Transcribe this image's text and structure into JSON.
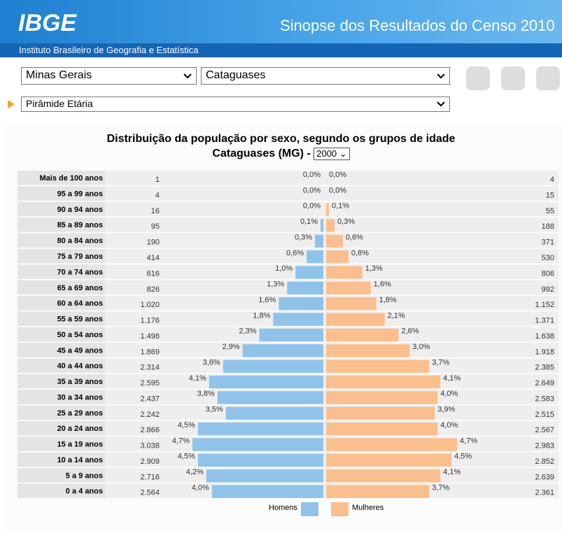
{
  "header": {
    "logo": "IBGE",
    "title": "Sinopse dos Resultados do Censo 2010",
    "subtitle": "Instituto Brasileiro de Geografia e Estatística"
  },
  "selects": {
    "state": "Minas Gerais",
    "city": "Cataguases",
    "view": "Pirâmide Etária"
  },
  "chart_data": {
    "type": "pyramid",
    "title": "Distribuição da população por sexo, segundo os grupos de idade",
    "subtitle": "Cataguases (MG) -",
    "year": "2000",
    "categories": [
      "Mais de 100 anos",
      "95 a 99 anos",
      "90 a 94 anos",
      "85 a 89 anos",
      "80 a 84 anos",
      "75 a 79 anos",
      "70 a 74 anos",
      "65 a 69 anos",
      "60 a 64 anos",
      "55 a 59 anos",
      "50 a 54 anos",
      "45 a 49 anos",
      "40 a 44 anos",
      "35 a 39 anos",
      "30 a 34 anos",
      "25 a 29 anos",
      "20 a 24 anos",
      "15 a 19 anos",
      "10 a 14 anos",
      "5 a 9 anos",
      "0 a 4 anos"
    ],
    "series": [
      {
        "name": "Homens",
        "color": "#8fc3ea",
        "values": [
          0.0,
          0.0,
          0.0,
          0.1,
          0.3,
          0.6,
          1.0,
          1.3,
          1.6,
          1.8,
          2.3,
          2.9,
          3.6,
          4.1,
          3.8,
          3.5,
          4.5,
          4.7,
          4.5,
          4.2,
          4.0
        ],
        "value_labels": [
          "0,0%",
          "0,0%",
          "0,0%",
          "0,1%",
          "0,3%",
          "0,6%",
          "1,0%",
          "1,3%",
          "1,6%",
          "1,8%",
          "2,3%",
          "2,9%",
          "3,6%",
          "4,1%",
          "3,8%",
          "3,5%",
          "4,5%",
          "4,7%",
          "4,5%",
          "4,2%",
          "4,0%"
        ],
        "counts": [
          "1",
          "4",
          "16",
          "95",
          "190",
          "414",
          "616",
          "826",
          "1.020",
          "1.176",
          "1.498",
          "1.869",
          "2.314",
          "2.595",
          "2.437",
          "2.242",
          "2.866",
          "3.038",
          "2.909",
          "2.716",
          "2.564"
        ]
      },
      {
        "name": "Mulheres",
        "color": "#fbbf8d",
        "values": [
          0.0,
          0.0,
          0.1,
          0.3,
          0.6,
          0.8,
          1.3,
          1.6,
          1.8,
          2.1,
          2.6,
          3.0,
          3.7,
          4.1,
          4.0,
          3.9,
          4.0,
          4.7,
          4.5,
          4.1,
          3.7
        ],
        "value_labels": [
          "0,0%",
          "0,0%",
          "0,1%",
          "0,3%",
          "0,6%",
          "0,8%",
          "1,3%",
          "1,6%",
          "1,8%",
          "2,1%",
          "2,6%",
          "3,0%",
          "3,7%",
          "4,1%",
          "4,0%",
          "3,9%",
          "4,0%",
          "4,7%",
          "4,5%",
          "4,1%",
          "3,7%"
        ],
        "counts": [
          "4",
          "15",
          "55",
          "188",
          "371",
          "530",
          "806",
          "992",
          "1.152",
          "1.371",
          "1.638",
          "1.918",
          "2.385",
          "2.649",
          "2.583",
          "2.515",
          "2.567",
          "2.983",
          "2.852",
          "2.639",
          "2.361"
        ]
      }
    ]
  }
}
